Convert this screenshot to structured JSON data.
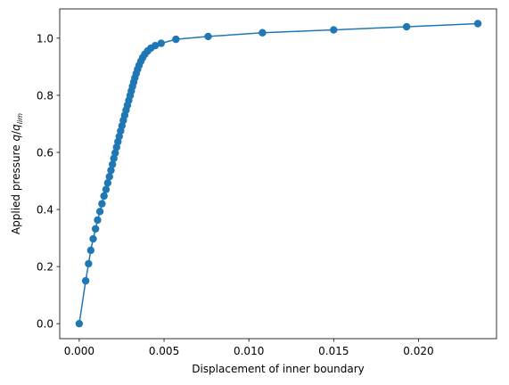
{
  "chart_data": {
    "type": "line",
    "title": "",
    "xlabel": "Displacement of inner boundary",
    "ylabel_main": "Applied pressure ",
    "ylabel_q": "q",
    "ylabel_slash": "/",
    "ylabel_qlim": "q",
    "ylabel_sub": "lim",
    "xlim": [
      -0.00115,
      0.0246
    ],
    "ylim": [
      -0.0525,
      1.1025
    ],
    "x_ticks": [
      0.0,
      0.005,
      0.01,
      0.015,
      0.02
    ],
    "x_tick_labels": [
      "0.000",
      "0.005",
      "0.010",
      "0.015",
      "0.020"
    ],
    "y_ticks": [
      0.0,
      0.2,
      0.4,
      0.6,
      0.8,
      1.0
    ],
    "y_tick_labels": [
      "0.0",
      "0.2",
      "0.4",
      "0.6",
      "0.8",
      "1.0"
    ],
    "grid": false,
    "legend": "none",
    "series": [
      {
        "color": "#1f77b4",
        "marker": "circle",
        "x": [
          0.0,
          0.00038,
          0.00055,
          0.00068,
          0.00082,
          0.00096,
          0.00108,
          0.00122,
          0.00134,
          0.00146,
          0.00158,
          0.00168,
          0.00178,
          0.00187,
          0.00196,
          0.00204,
          0.00212,
          0.0022,
          0.00228,
          0.00236,
          0.00244,
          0.00252,
          0.0026,
          0.00268,
          0.00276,
          0.00284,
          0.00292,
          0.003,
          0.00307,
          0.00314,
          0.00321,
          0.00328,
          0.00336,
          0.00344,
          0.00353,
          0.00363,
          0.00374,
          0.00387,
          0.00403,
          0.00422,
          0.00448,
          0.00483,
          0.0057,
          0.0076,
          0.0108,
          0.015,
          0.0193,
          0.0235
        ],
        "y": [
          0.0,
          0.15,
          0.21,
          0.257,
          0.297,
          0.332,
          0.363,
          0.393,
          0.42,
          0.447,
          0.47,
          0.493,
          0.515,
          0.537,
          0.558,
          0.579,
          0.598,
          0.618,
          0.637,
          0.656,
          0.675,
          0.693,
          0.712,
          0.73,
          0.748,
          0.765,
          0.782,
          0.799,
          0.815,
          0.831,
          0.846,
          0.861,
          0.876,
          0.891,
          0.905,
          0.919,
          0.932,
          0.944,
          0.955,
          0.965,
          0.974,
          0.982,
          0.996,
          1.006,
          1.019,
          1.029,
          1.04,
          1.051
        ]
      }
    ]
  }
}
